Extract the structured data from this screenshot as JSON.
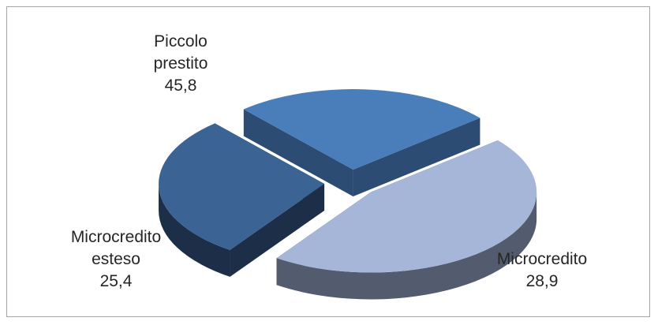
{
  "chart_data": {
    "type": "pie",
    "style": "3d-exploded",
    "slices": [
      {
        "label_lines": [
          "Piccolo",
          "prestito"
        ],
        "value": 45.8,
        "value_text": "45,8",
        "color": "#a6b6d8",
        "side_color": "#525c6e"
      },
      {
        "label_lines": [
          "Microcredito"
        ],
        "value": 28.9,
        "value_text": "28,9",
        "color": "#3b6394",
        "side_color": "#1c2e48"
      },
      {
        "label_lines": [
          "Microcredito",
          "esteso"
        ],
        "value": 25.4,
        "value_text": "25,4",
        "color": "#4a7ebb",
        "side_color": "#2c4c74"
      }
    ]
  }
}
